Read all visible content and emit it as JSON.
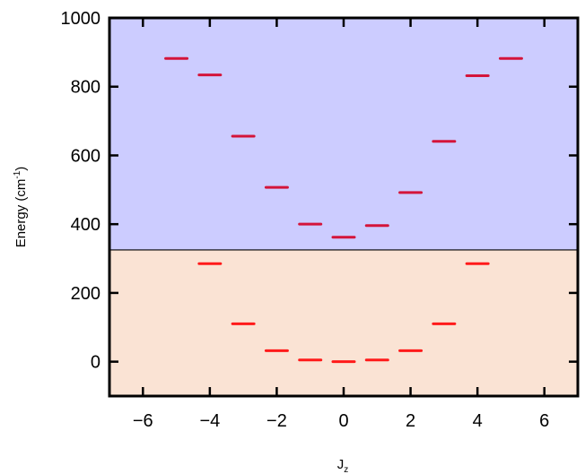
{
  "chart_data": {
    "type": "scatter",
    "title": "",
    "xlabel": "J",
    "xlabel_sub": "z",
    "ylabel": "Energy (cm",
    "ylabel_sup": "-1",
    "ylabel_end": ")",
    "xlim": [
      -7,
      7
    ],
    "ylim": [
      -100,
      1000
    ],
    "xticks": [
      -6,
      -4,
      -2,
      0,
      2,
      4,
      6
    ],
    "yticks": [
      0,
      200,
      400,
      600,
      800,
      1000
    ],
    "xtick_labels": [
      "−6",
      "−4",
      "−2",
      "0",
      "2",
      "4",
      "6"
    ],
    "ytick_labels": [
      "0",
      "200",
      "400",
      "600",
      "800",
      "1000"
    ],
    "grid": false,
    "regions": [
      {
        "from": -100,
        "to": 325,
        "color": "#fae3d4"
      },
      {
        "from": 325,
        "to": 1000,
        "color": "#ccccff"
      }
    ],
    "boundary": 325,
    "series": [
      {
        "color": "#ff1a1a",
        "points": [
          {
            "x": -4,
            "y": 285
          },
          {
            "x": -3,
            "y": 110
          },
          {
            "x": -2,
            "y": 32
          },
          {
            "x": -1,
            "y": 5
          },
          {
            "x": 0,
            "y": 0
          },
          {
            "x": 1,
            "y": 5
          },
          {
            "x": 2,
            "y": 32
          },
          {
            "x": 3,
            "y": 110
          },
          {
            "x": 4,
            "y": 285
          }
        ]
      },
      {
        "color": "#d4143a",
        "points": [
          {
            "x": -5,
            "y": 882
          },
          {
            "x": -4,
            "y": 834
          },
          {
            "x": -3,
            "y": 656
          },
          {
            "x": -2,
            "y": 507
          },
          {
            "x": -1,
            "y": 400
          },
          {
            "x": 0,
            "y": 362
          },
          {
            "x": 1,
            "y": 396
          },
          {
            "x": 2,
            "y": 492
          },
          {
            "x": 3,
            "y": 641
          },
          {
            "x": 4,
            "y": 832
          },
          {
            "x": 5,
            "y": 882
          }
        ]
      }
    ]
  }
}
